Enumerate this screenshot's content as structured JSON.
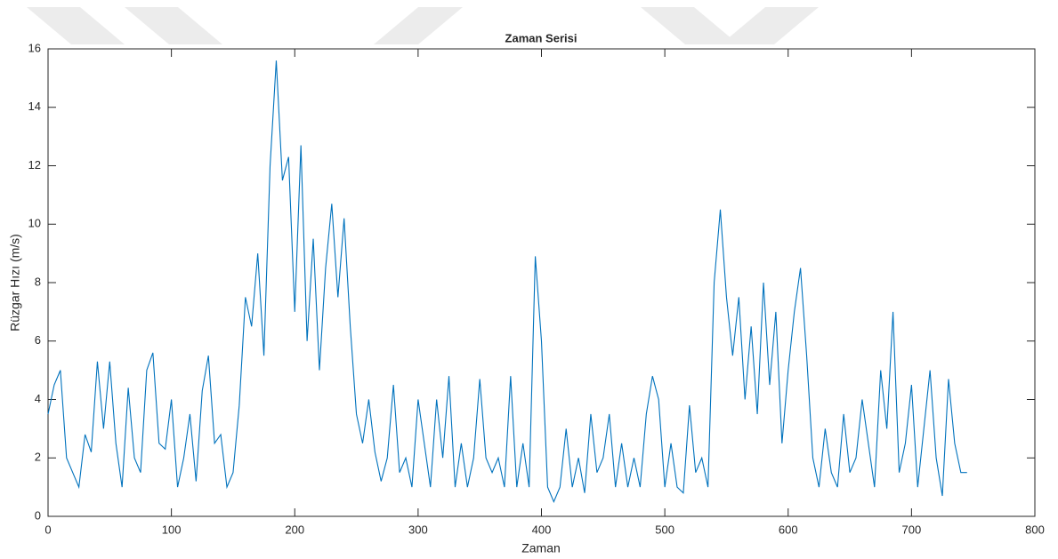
{
  "chart_data": {
    "type": "line",
    "title": "Zaman Serisi",
    "x_label": "Zaman",
    "y_label": "Rüzgar Hızı (m/s)",
    "x": [
      0,
      5,
      10,
      15,
      20,
      25,
      30,
      35,
      40,
      45,
      50,
      55,
      60,
      65,
      70,
      75,
      80,
      85,
      90,
      95,
      100,
      105,
      110,
      115,
      120,
      125,
      130,
      135,
      140,
      145,
      150,
      155,
      160,
      165,
      170,
      175,
      180,
      185,
      190,
      195,
      200,
      205,
      210,
      215,
      220,
      225,
      230,
      235,
      240,
      245,
      250,
      255,
      260,
      265,
      270,
      275,
      280,
      285,
      290,
      295,
      300,
      305,
      310,
      315,
      320,
      325,
      330,
      335,
      340,
      345,
      350,
      355,
      360,
      365,
      370,
      375,
      380,
      385,
      390,
      395,
      400,
      405,
      410,
      415,
      420,
      425,
      430,
      435,
      440,
      445,
      450,
      455,
      460,
      465,
      470,
      475,
      480,
      485,
      490,
      495,
      500,
      505,
      510,
      515,
      520,
      525,
      530,
      535,
      540,
      545,
      550,
      555,
      560,
      565,
      570,
      575,
      580,
      585,
      590,
      595,
      600,
      605,
      610,
      615,
      620,
      625,
      630,
      635,
      640,
      645,
      650,
      655,
      660,
      665,
      670,
      675,
      680,
      685,
      690,
      695,
      700,
      705,
      710,
      715,
      720,
      725,
      730,
      735,
      740,
      745
    ],
    "values": [
      3.5,
      4.5,
      5.0,
      2.0,
      1.5,
      1.0,
      2.8,
      2.2,
      5.3,
      3.0,
      5.3,
      2.5,
      1.0,
      4.4,
      2.0,
      1.5,
      5.0,
      5.6,
      2.5,
      2.3,
      4.0,
      1.0,
      2.0,
      3.5,
      1.2,
      4.3,
      5.5,
      2.5,
      2.8,
      1.0,
      1.5,
      3.8,
      7.5,
      6.5,
      9.0,
      5.5,
      12.0,
      15.6,
      11.5,
      12.3,
      7.0,
      12.7,
      6.0,
      9.5,
      5.0,
      8.5,
      10.7,
      7.5,
      10.2,
      6.5,
      3.5,
      2.5,
      4.0,
      2.2,
      1.2,
      2.0,
      4.5,
      1.5,
      2.0,
      1.0,
      4.0,
      2.5,
      1.0,
      4.0,
      2.0,
      4.8,
      1.0,
      2.5,
      1.0,
      2.0,
      4.7,
      2.0,
      1.5,
      2.0,
      1.0,
      4.8,
      1.0,
      2.5,
      1.0,
      8.9,
      6.0,
      1.0,
      0.5,
      1.0,
      3.0,
      1.0,
      2.0,
      0.8,
      3.5,
      1.5,
      2.0,
      3.5,
      1.0,
      2.5,
      1.0,
      2.0,
      1.0,
      3.5,
      4.8,
      4.0,
      1.0,
      2.5,
      1.0,
      0.8,
      3.8,
      1.5,
      2.0,
      1.0,
      8.0,
      10.5,
      7.5,
      5.5,
      7.5,
      4.0,
      6.5,
      3.5,
      8.0,
      4.5,
      7.0,
      2.5,
      5.0,
      7.0,
      8.5,
      5.5,
      2.0,
      1.0,
      3.0,
      1.5,
      1.0,
      3.5,
      1.5,
      2.0,
      4.0,
      2.5,
      1.0,
      5.0,
      3.0,
      7.0,
      1.5,
      2.5,
      4.5,
      1.0,
      3.0,
      5.0,
      2.0,
      0.7,
      4.7,
      2.5,
      1.5,
      1.5
    ],
    "color": "#0072bd",
    "xlim": [
      0,
      800
    ],
    "xticks": [
      0,
      100,
      200,
      300,
      400,
      500,
      600,
      700,
      800
    ],
    "ylim": [
      0,
      16
    ],
    "yticks": [
      0,
      2,
      4,
      6,
      8,
      10,
      12,
      14,
      16
    ]
  }
}
